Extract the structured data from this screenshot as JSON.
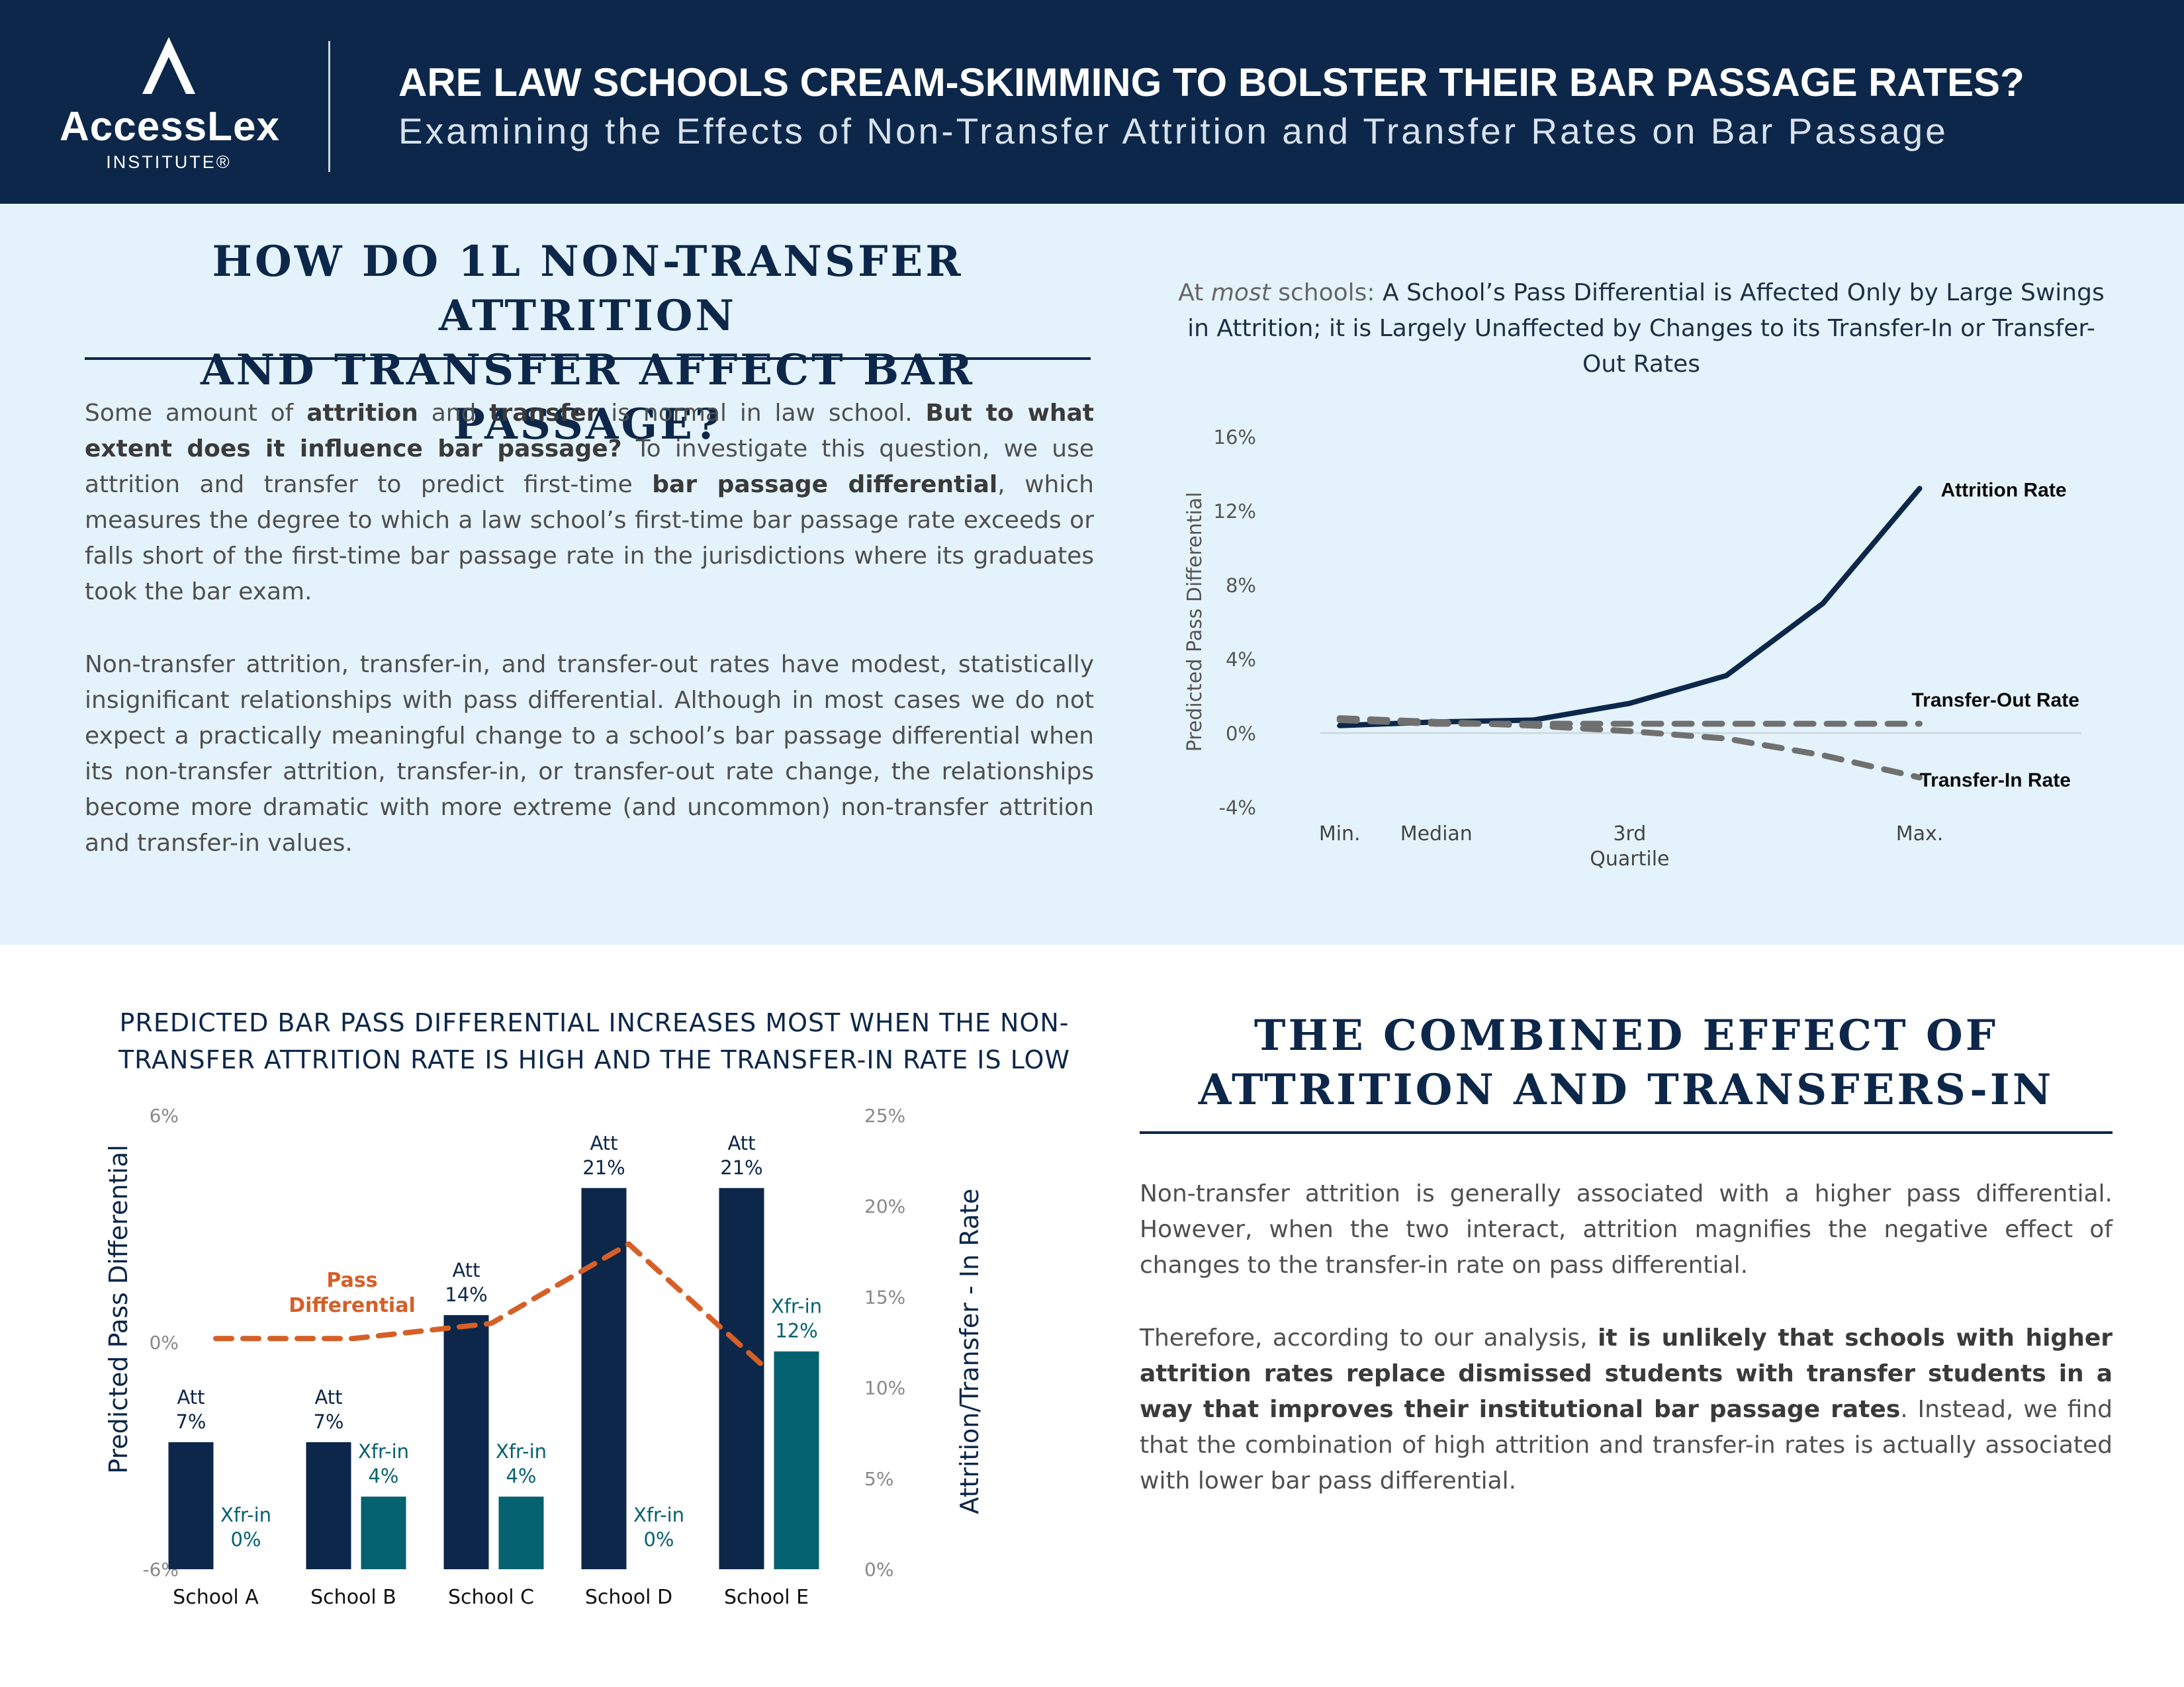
{
  "header": {
    "logo_name": "AccessLex",
    "logo_sub": "INSTITUTE®",
    "title": "ARE LAW SCHOOLS CREAM-SKIMMING TO BOLSTER THEIR BAR PASSAGE RATES?",
    "subtitle": "Examining the Effects of Non-Transfer Attrition and Transfer Rates on Bar Passage"
  },
  "section1": {
    "heading_line1": "HOW DO 1L NON-TRANSFER ATTRITION",
    "heading_line2": "AND TRANSFER AFFECT BAR PASSAGE?",
    "p1": [
      {
        "t": "Some amount of ",
        "b": false
      },
      {
        "t": "attrition",
        "b": true
      },
      {
        "t": " and ",
        "b": false
      },
      {
        "t": "transfer",
        "b": true
      },
      {
        "t": " is normal in law school. ",
        "b": false
      },
      {
        "t": "But to what extent does it influence bar passage?",
        "b": true
      },
      {
        "t": " To investigate this question, we use attrition and transfer to predict first-time ",
        "b": false
      },
      {
        "t": "bar passage differential",
        "b": true
      },
      {
        "t": ", which measures the degree to which a law school’s first-time bar passage rate exceeds or falls short of the first-time bar passage rate in the jurisdictions where its graduates took the bar exam.",
        "b": false
      }
    ],
    "p2": "Non-transfer attrition, transfer-in, and transfer-out rates have modest, statistically insignificant relationships with pass differential. Although in most cases we do not expect a practically meaningful change to a school’s bar passage differential when its non-transfer attrition, transfer-in, or transfer-out rate change, the relationships become more dramatic with more extreme (and uncommon) non-transfer attrition and transfer-in values."
  },
  "chart1_title": {
    "prefix1": "At ",
    "prefix_em": "most",
    "prefix2": " schools:",
    "main": " A School’s Pass Differential is Affected Only by Large Swings in Attrition; it is Largely Unaffected by Changes to its Transfer-In or Transfer-Out Rates"
  },
  "section2": {
    "heading_line1": "THE COMBINED EFFECT OF",
    "heading_line2": "ATTRITION AND TRANSFERS-IN",
    "p1": "Non-transfer attrition is generally associated with a higher pass differential. However, when the two interact, attrition magnifies the negative effect of changes to the transfer-in rate on pass differential.",
    "p2": [
      {
        "t": "Therefore, according to our analysis, ",
        "b": false
      },
      {
        "t": "it is unlikely that schools with higher attrition rates replace dismissed students with transfer students in a way that improves their institutional bar passage rates",
        "b": true
      },
      {
        "t": ". Instead, we find that the combination of high attrition and transfer-in rates is actually associated with lower bar pass differential.",
        "b": false
      }
    ]
  },
  "chart2_title": "PREDICTED BAR PASS DIFFERENTIAL INCREASES MOST WHEN THE NON-TRANSFER ATTRITION RATE IS HIGH AND THE TRANSFER-IN RATE IS LOW",
  "colors": {
    "navy": "#0c2749",
    "teal": "#04616f",
    "orange": "#d65f27",
    "gray_line": "#707070",
    "band": "#e4f3fb"
  },
  "chart_data": [
    {
      "type": "line",
      "ylabel": "Predicted Pass Differential",
      "ylim": [
        -4,
        16
      ],
      "yticks": [
        -4,
        0,
        4,
        8,
        12,
        16
      ],
      "ytick_labels": [
        "-4%",
        "0%",
        "4%",
        "8%",
        "12%",
        "16%"
      ],
      "x_labels": [
        {
          "at": 0,
          "text": [
            "Min."
          ]
        },
        {
          "at": 1,
          "text": [
            "Median"
          ]
        },
        {
          "at": 3,
          "text": [
            "3rd",
            "Quartile"
          ]
        },
        {
          "at": 6,
          "text": [
            "Max."
          ]
        }
      ],
      "x": [
        0,
        1,
        2,
        3,
        4,
        5,
        6
      ],
      "xlim": [
        -0.2,
        7.4
      ],
      "series": [
        {
          "name": "Attrition Rate",
          "style": "solid",
          "color": "#0c2749",
          "values": [
            0.4,
            0.6,
            0.7,
            1.6,
            3.1,
            7.0,
            13.2
          ]
        },
        {
          "name": "Transfer-Out Rate",
          "style": "dashed",
          "color": "#707070",
          "values": [
            0.7,
            0.5,
            0.5,
            0.5,
            0.5,
            0.5,
            0.5
          ]
        },
        {
          "name": "Transfer-In Rate",
          "style": "dashed",
          "color": "#707070",
          "values": [
            0.8,
            0.6,
            0.4,
            0.1,
            -0.3,
            -1.2,
            -2.4
          ]
        }
      ],
      "legend": "inline labels at right end of each line"
    },
    {
      "type": "bar",
      "categories": [
        "School A",
        "School B",
        "School C",
        "School D",
        "School E"
      ],
      "left_axis": {
        "label": "Predicted Pass Differential",
        "range": [
          -6,
          6
        ],
        "ticks": [
          "6%",
          "0%",
          "-6%"
        ]
      },
      "right_axis": {
        "label": "Attrition/Transfer - In Rate",
        "range": [
          0,
          25
        ],
        "ticks": [
          "25%",
          "20%",
          "15%",
          "10%",
          "5%",
          "0%"
        ]
      },
      "series": [
        {
          "name": "Att",
          "axis": "right",
          "color": "#0c2749",
          "values": [
            7,
            7,
            14,
            21,
            21
          ],
          "labels": [
            "7%",
            "7%",
            "14%",
            "21%",
            "21%"
          ]
        },
        {
          "name": "Xfr-in",
          "axis": "right",
          "color": "#04616f",
          "values": [
            0,
            4,
            4,
            0,
            12
          ],
          "labels": [
            "0%",
            "4%",
            "4%",
            "0%",
            "12%"
          ]
        },
        {
          "name": "Pass Differential",
          "axis": "left",
          "style": "dashed",
          "color": "#d65f27",
          "values": [
            0.1,
            0.1,
            0.5,
            2.6,
            -0.7
          ],
          "label_lines": [
            "Pass",
            "Differential"
          ]
        }
      ]
    }
  ]
}
